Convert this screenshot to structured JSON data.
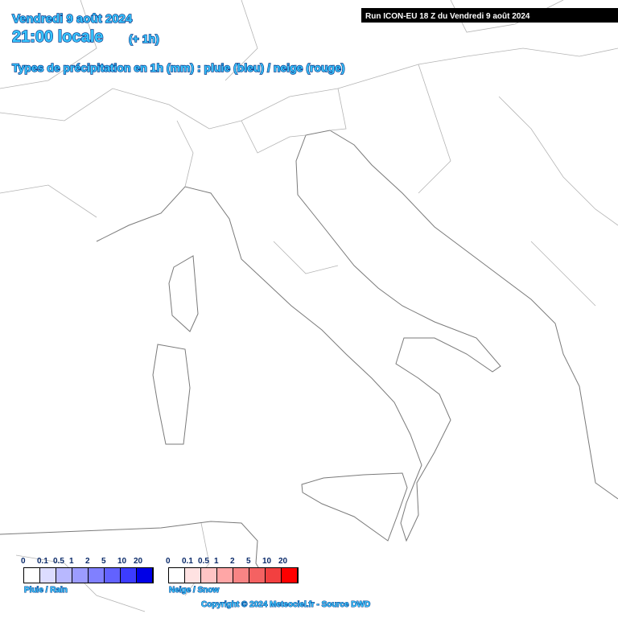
{
  "header": {
    "date": "Vendredi 9 août 2024",
    "time": "21:00 locale",
    "offset": "(+ 1h)",
    "subtitle": "Types de précipitation en 1h (mm) : pluie (bleu) / neige (rouge)"
  },
  "run_label": "Run ICON-EU 18 Z du Vendredi 9 août 2024",
  "legends": [
    {
      "title": "Pluie / Rain",
      "ticks": [
        0,
        0.1,
        0.5,
        1,
        2,
        5,
        10,
        20
      ],
      "colors": [
        "#ffffff",
        "#dcdcff",
        "#b8b8ff",
        "#9c9cff",
        "#8080ff",
        "#6262ff",
        "#3c3cff",
        "#0000e6"
      ]
    },
    {
      "title": "Neige / Snow",
      "ticks": [
        0,
        0.1,
        0.5,
        1,
        2,
        5,
        10,
        20
      ],
      "colors": [
        "#ffffff",
        "#ffe2e2",
        "#ffc4c4",
        "#ffa6a6",
        "#f88484",
        "#f46262",
        "#f24040",
        "#ff0000"
      ]
    }
  ],
  "copyright": "Copyright © 2024 Meteociel.fr - Source DWD"
}
